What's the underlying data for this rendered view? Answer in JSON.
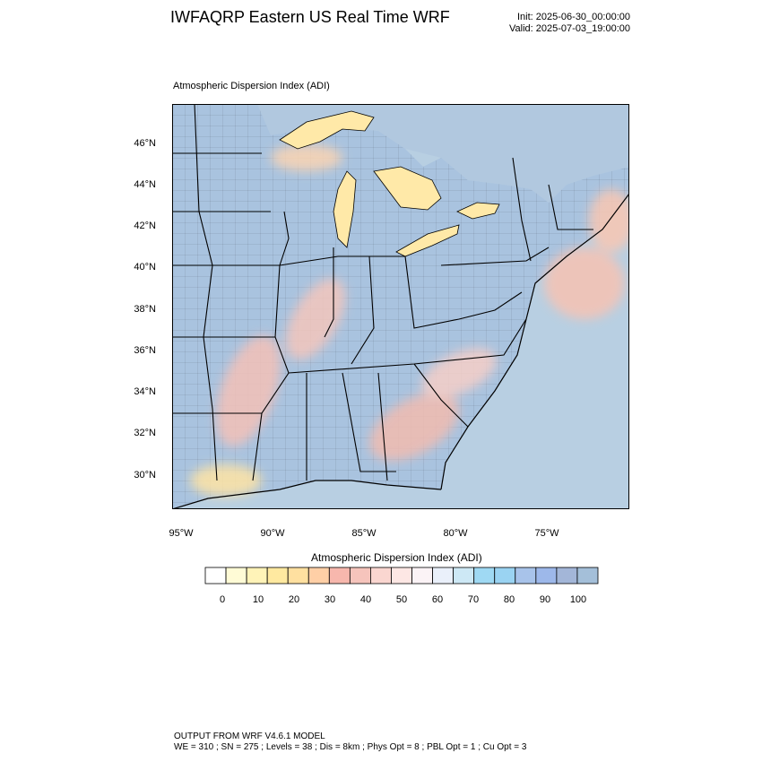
{
  "header": {
    "title": "IWFAQRP Eastern US Real Time WRF",
    "init": "Init: 2025-06-30_00:00:00",
    "valid": "Valid: 2025-07-03_19:00:00"
  },
  "map": {
    "label": "Atmospheric Dispersion Index   (ADI)",
    "lat_labels": [
      "46°N",
      "44°N",
      "42°N",
      "40°N",
      "38°N",
      "36°N",
      "34°N",
      "32°N",
      "30°N"
    ],
    "lon_labels": [
      "95°W",
      "90°W",
      "85°W",
      "80°W",
      "75°W"
    ],
    "colors": {
      "ocean": "#b8cfe2",
      "land_high": "#a9c3df",
      "low": "#ffe9a8",
      "mid": "#f4c1b8",
      "boundary": "#000000"
    }
  },
  "colorbar": {
    "title": "Atmospheric Dispersion Index  (ADI)",
    "colors": [
      "#ffffff",
      "#fffbd6",
      "#fff3b8",
      "#ffe9a0",
      "#ffe0a0",
      "#ffcfa6",
      "#f7b7ad",
      "#f6c4bc",
      "#fad6d0",
      "#fde7e4",
      "#fbf3f6",
      "#eaf0fa",
      "#cde8f5",
      "#9fd9f3",
      "#9ad3f2",
      "#a8c3ea",
      "#9db8ea",
      "#a3b6d8",
      "#a4bfd9"
    ],
    "labels": [
      "0",
      "10",
      "20",
      "30",
      "40",
      "50",
      "60",
      "70",
      "80",
      "90",
      "100"
    ]
  },
  "footer": {
    "line1": "OUTPUT FROM WRF V4.6.1 MODEL",
    "line2": "WE = 310 ; SN = 275 ; Levels = 38 ; Dis = 8km ; Phys Opt = 8 ; PBL Opt = 1 ; Cu Opt = 3"
  }
}
